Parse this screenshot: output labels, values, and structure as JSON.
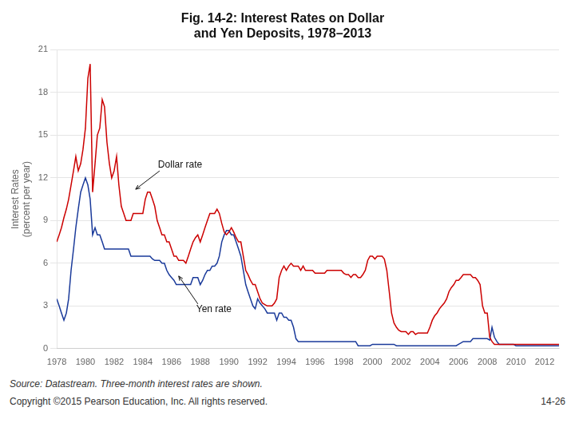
{
  "chart_data": {
    "type": "line",
    "title": "Fig. 14-2: Interest Rates on Dollar\nand Yen Deposits, 1978–2013",
    "ylabel": "Interest Rates\n(percent per year)",
    "source": "Source: Datastream. Three-month interest rates are shown.",
    "copyright": "Copyright ©2015 Pearson Education, Inc. All rights reserved.",
    "page_number": "14-26",
    "xlim": [
      1978,
      2013
    ],
    "xticks": [
      1978,
      1980,
      1982,
      1984,
      1986,
      1988,
      1990,
      1992,
      1994,
      1996,
      1998,
      2000,
      2002,
      2004,
      2006,
      2008,
      2010,
      2012
    ],
    "ylim": [
      0,
      21
    ],
    "yticks": [
      0,
      3,
      6,
      9,
      12,
      15,
      18,
      21
    ],
    "grid": "y",
    "x": [
      1978.0,
      1978.17,
      1978.33,
      1978.5,
      1978.67,
      1978.83,
      1979.0,
      1979.17,
      1979.33,
      1979.5,
      1979.67,
      1979.83,
      1980.0,
      1980.17,
      1980.33,
      1980.5,
      1980.67,
      1980.83,
      1981.0,
      1981.17,
      1981.33,
      1981.5,
      1981.67,
      1981.83,
      1982.0,
      1982.17,
      1982.33,
      1982.5,
      1982.67,
      1982.83,
      1983.0,
      1983.17,
      1983.33,
      1983.5,
      1983.67,
      1983.83,
      1984.0,
      1984.17,
      1984.33,
      1984.5,
      1984.67,
      1984.83,
      1985.0,
      1985.17,
      1985.33,
      1985.5,
      1985.67,
      1985.83,
      1986.0,
      1986.17,
      1986.33,
      1986.5,
      1986.67,
      1986.83,
      1987.0,
      1987.17,
      1987.33,
      1987.5,
      1987.67,
      1987.83,
      1988.0,
      1988.17,
      1988.33,
      1988.5,
      1988.67,
      1988.83,
      1989.0,
      1989.17,
      1989.33,
      1989.5,
      1989.67,
      1989.83,
      1990.0,
      1990.17,
      1990.33,
      1990.5,
      1990.67,
      1990.83,
      1991.0,
      1991.17,
      1991.33,
      1991.5,
      1991.67,
      1991.83,
      1992.0,
      1992.17,
      1992.33,
      1992.5,
      1992.67,
      1992.83,
      1993.0,
      1993.17,
      1993.33,
      1993.5,
      1993.67,
      1993.83,
      1994.0,
      1994.17,
      1994.33,
      1994.5,
      1994.67,
      1994.83,
      1995.0,
      1995.17,
      1995.33,
      1995.5,
      1995.67,
      1995.83,
      1996.0,
      1996.17,
      1996.33,
      1996.5,
      1996.67,
      1996.83,
      1997.0,
      1997.17,
      1997.33,
      1997.5,
      1997.67,
      1997.83,
      1998.0,
      1998.17,
      1998.33,
      1998.5,
      1998.67,
      1998.83,
      1999.0,
      1999.17,
      1999.33,
      1999.5,
      1999.67,
      1999.83,
      2000.0,
      2000.17,
      2000.33,
      2000.5,
      2000.67,
      2000.83,
      2001.0,
      2001.17,
      2001.33,
      2001.5,
      2001.67,
      2001.83,
      2002.0,
      2002.17,
      2002.33,
      2002.5,
      2002.67,
      2002.83,
      2003.0,
      2003.17,
      2003.33,
      2003.5,
      2003.67,
      2003.83,
      2004.0,
      2004.17,
      2004.33,
      2004.5,
      2004.67,
      2004.83,
      2005.0,
      2005.17,
      2005.33,
      2005.5,
      2005.67,
      2005.83,
      2006.0,
      2006.17,
      2006.33,
      2006.5,
      2006.67,
      2006.83,
      2007.0,
      2007.17,
      2007.33,
      2007.5,
      2007.67,
      2007.83,
      2008.0,
      2008.17,
      2008.33,
      2008.5,
      2008.67,
      2008.83,
      2009.0,
      2009.17,
      2009.33,
      2009.5,
      2009.67,
      2009.83,
      2010.0,
      2010.17,
      2010.33,
      2010.5,
      2010.67,
      2010.83,
      2011.0,
      2011.17,
      2011.33,
      2011.5,
      2011.67,
      2011.83,
      2012.0,
      2012.17,
      2012.33,
      2012.5,
      2012.67,
      2012.83,
      2013.0
    ],
    "series": [
      {
        "color": "#cc0000",
        "values": [
          7.5,
          8.0,
          8.5,
          9.2,
          9.8,
          10.5,
          11.5,
          12.5,
          13.5,
          12.5,
          13.0,
          14.0,
          15.5,
          19.0,
          20.0,
          11.0,
          13.0,
          15.0,
          15.5,
          17.5,
          17.0,
          14.5,
          13.0,
          12.0,
          12.5,
          13.5,
          11.5,
          10.0,
          9.5,
          9.0,
          9.0,
          9.0,
          9.5,
          9.5,
          9.5,
          9.5,
          9.5,
          10.5,
          11.0,
          11.0,
          10.5,
          10.0,
          9.0,
          8.5,
          8.0,
          8.0,
          7.5,
          7.5,
          7.0,
          6.5,
          6.5,
          6.2,
          6.2,
          6.2,
          6.0,
          6.5,
          7.0,
          7.5,
          7.8,
          8.0,
          7.5,
          8.0,
          8.5,
          9.0,
          9.5,
          9.5,
          9.5,
          9.8,
          9.5,
          8.8,
          8.2,
          8.0,
          8.2,
          8.5,
          8.2,
          7.8,
          7.5,
          7.5,
          6.5,
          5.5,
          5.2,
          4.8,
          4.5,
          4.5,
          4.0,
          3.5,
          3.2,
          3.1,
          3.0,
          3.0,
          3.0,
          3.2,
          3.5,
          5.0,
          5.5,
          5.8,
          5.5,
          5.8,
          6.0,
          5.8,
          5.8,
          5.8,
          5.5,
          5.8,
          5.5,
          5.5,
          5.5,
          5.5,
          5.3,
          5.3,
          5.3,
          5.3,
          5.3,
          5.5,
          5.5,
          5.5,
          5.5,
          5.5,
          5.5,
          5.5,
          5.3,
          5.2,
          5.2,
          5.0,
          5.2,
          5.2,
          5.0,
          5.0,
          5.2,
          5.5,
          6.2,
          6.5,
          6.5,
          6.3,
          6.5,
          6.5,
          6.5,
          6.3,
          5.5,
          4.0,
          2.5,
          1.8,
          1.5,
          1.3,
          1.2,
          1.2,
          1.2,
          1.0,
          1.2,
          1.2,
          1.0,
          1.1,
          1.1,
          1.1,
          1.1,
          1.1,
          1.5,
          2.0,
          2.3,
          2.5,
          2.8,
          3.0,
          3.2,
          3.5,
          4.0,
          4.3,
          4.5,
          4.8,
          4.8,
          5.0,
          5.2,
          5.2,
          5.2,
          5.2,
          5.0,
          5.0,
          4.8,
          4.5,
          3.0,
          2.5,
          2.5,
          0.8,
          0.5,
          0.3,
          0.3,
          0.3,
          0.3,
          0.3,
          0.3,
          0.3,
          0.3,
          0.3,
          0.3,
          0.3,
          0.3,
          0.3,
          0.3,
          0.3,
          0.3,
          0.3,
          0.3,
          0.3,
          0.3,
          0.3,
          0.3,
          0.3,
          0.3,
          0.3,
          0.3,
          0.3,
          0.3
        ]
      },
      {
        "color": "#1a3a9a",
        "values": [
          3.5,
          3.0,
          2.5,
          2.0,
          2.5,
          3.5,
          5.5,
          7.0,
          8.5,
          9.8,
          11.0,
          11.5,
          12.0,
          11.5,
          10.5,
          8.0,
          8.5,
          8.0,
          8.0,
          7.5,
          7.0,
          7.0,
          7.0,
          7.0,
          7.0,
          7.0,
          7.0,
          7.0,
          7.0,
          7.0,
          7.0,
          6.5,
          6.5,
          6.5,
          6.5,
          6.5,
          6.5,
          6.5,
          6.5,
          6.5,
          6.3,
          6.2,
          6.2,
          6.2,
          6.0,
          6.0,
          5.5,
          5.2,
          5.0,
          4.8,
          4.5,
          4.5,
          4.5,
          4.5,
          4.5,
          4.5,
          4.5,
          5.0,
          5.0,
          5.0,
          4.5,
          4.8,
          5.2,
          5.5,
          5.5,
          5.8,
          5.8,
          6.0,
          6.5,
          7.5,
          8.0,
          8.3,
          8.3,
          8.0,
          8.0,
          7.5,
          7.0,
          6.5,
          5.5,
          4.5,
          4.0,
          3.5,
          3.0,
          2.8,
          3.5,
          3.2,
          3.0,
          2.8,
          2.5,
          2.5,
          2.5,
          2.5,
          2.0,
          2.5,
          2.5,
          2.2,
          2.2,
          2.0,
          2.0,
          1.5,
          0.7,
          0.5,
          0.5,
          0.5,
          0.5,
          0.5,
          0.5,
          0.5,
          0.5,
          0.5,
          0.5,
          0.5,
          0.5,
          0.5,
          0.5,
          0.5,
          0.5,
          0.5,
          0.5,
          0.5,
          0.5,
          0.5,
          0.5,
          0.5,
          0.5,
          0.5,
          0.2,
          0.2,
          0.2,
          0.2,
          0.2,
          0.2,
          0.3,
          0.3,
          0.3,
          0.3,
          0.3,
          0.3,
          0.3,
          0.3,
          0.3,
          0.3,
          0.2,
          0.2,
          0.2,
          0.2,
          0.2,
          0.2,
          0.2,
          0.2,
          0.2,
          0.2,
          0.2,
          0.2,
          0.2,
          0.2,
          0.2,
          0.2,
          0.2,
          0.2,
          0.2,
          0.2,
          0.2,
          0.2,
          0.2,
          0.2,
          0.2,
          0.2,
          0.3,
          0.4,
          0.5,
          0.5,
          0.5,
          0.5,
          0.7,
          0.7,
          0.7,
          0.7,
          0.7,
          0.7,
          0.7,
          0.6,
          1.5,
          0.8,
          0.5,
          0.3,
          0.3,
          0.3,
          0.3,
          0.3,
          0.3,
          0.3,
          0.2,
          0.2,
          0.2,
          0.2,
          0.2,
          0.2,
          0.2,
          0.2,
          0.2,
          0.2,
          0.2,
          0.2,
          0.2,
          0.2,
          0.2,
          0.2,
          0.2,
          0.2,
          0.2
        ]
      }
    ],
    "annotations": [
      {
        "text": "Dollar rate",
        "x": 1983.5,
        "y": 11.2
      },
      {
        "text": "Yen rate",
        "x": 1986.5,
        "y": 5.1
      }
    ]
  }
}
